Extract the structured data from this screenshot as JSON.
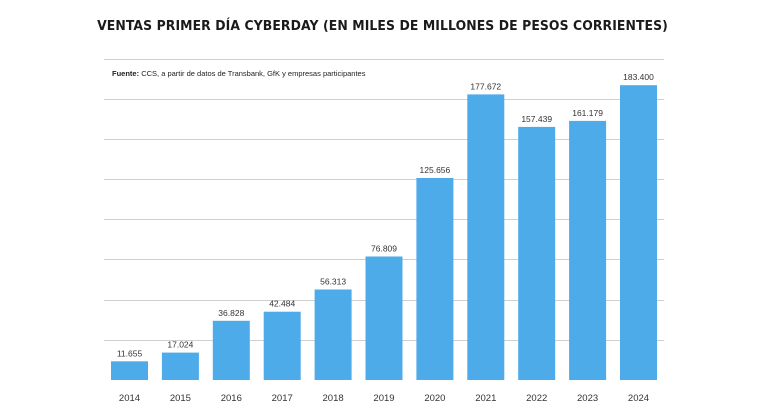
{
  "chart_data": {
    "type": "bar",
    "title": "VENTAS PRIMER DÍA CYBERDAY (EN MILES DE MILLONES DE PESOS CORRIENTES)",
    "source_label": "Fuente:",
    "source_text": "CCS, a partir de datos de Transbank, GfK y empresas participantes",
    "categories": [
      "2014",
      "2015",
      "2016",
      "2017",
      "2018",
      "2019",
      "2020",
      "2021",
      "2022",
      "2023",
      "2024"
    ],
    "values": [
      11.655,
      17.024,
      36.828,
      42.484,
      56.313,
      76.809,
      125.656,
      177.672,
      157.439,
      161.179,
      183.4
    ],
    "value_labels": [
      "11.655",
      "17.024",
      "36.828",
      "42.484",
      "56.313",
      "76.809",
      "125.656",
      "177.672",
      "157.439",
      "161.179",
      "183.400"
    ],
    "xlabel": "",
    "ylabel": "",
    "ylim": [
      0,
      200
    ],
    "grid": true,
    "legend": "none",
    "bar_color": "#4eabe9"
  }
}
